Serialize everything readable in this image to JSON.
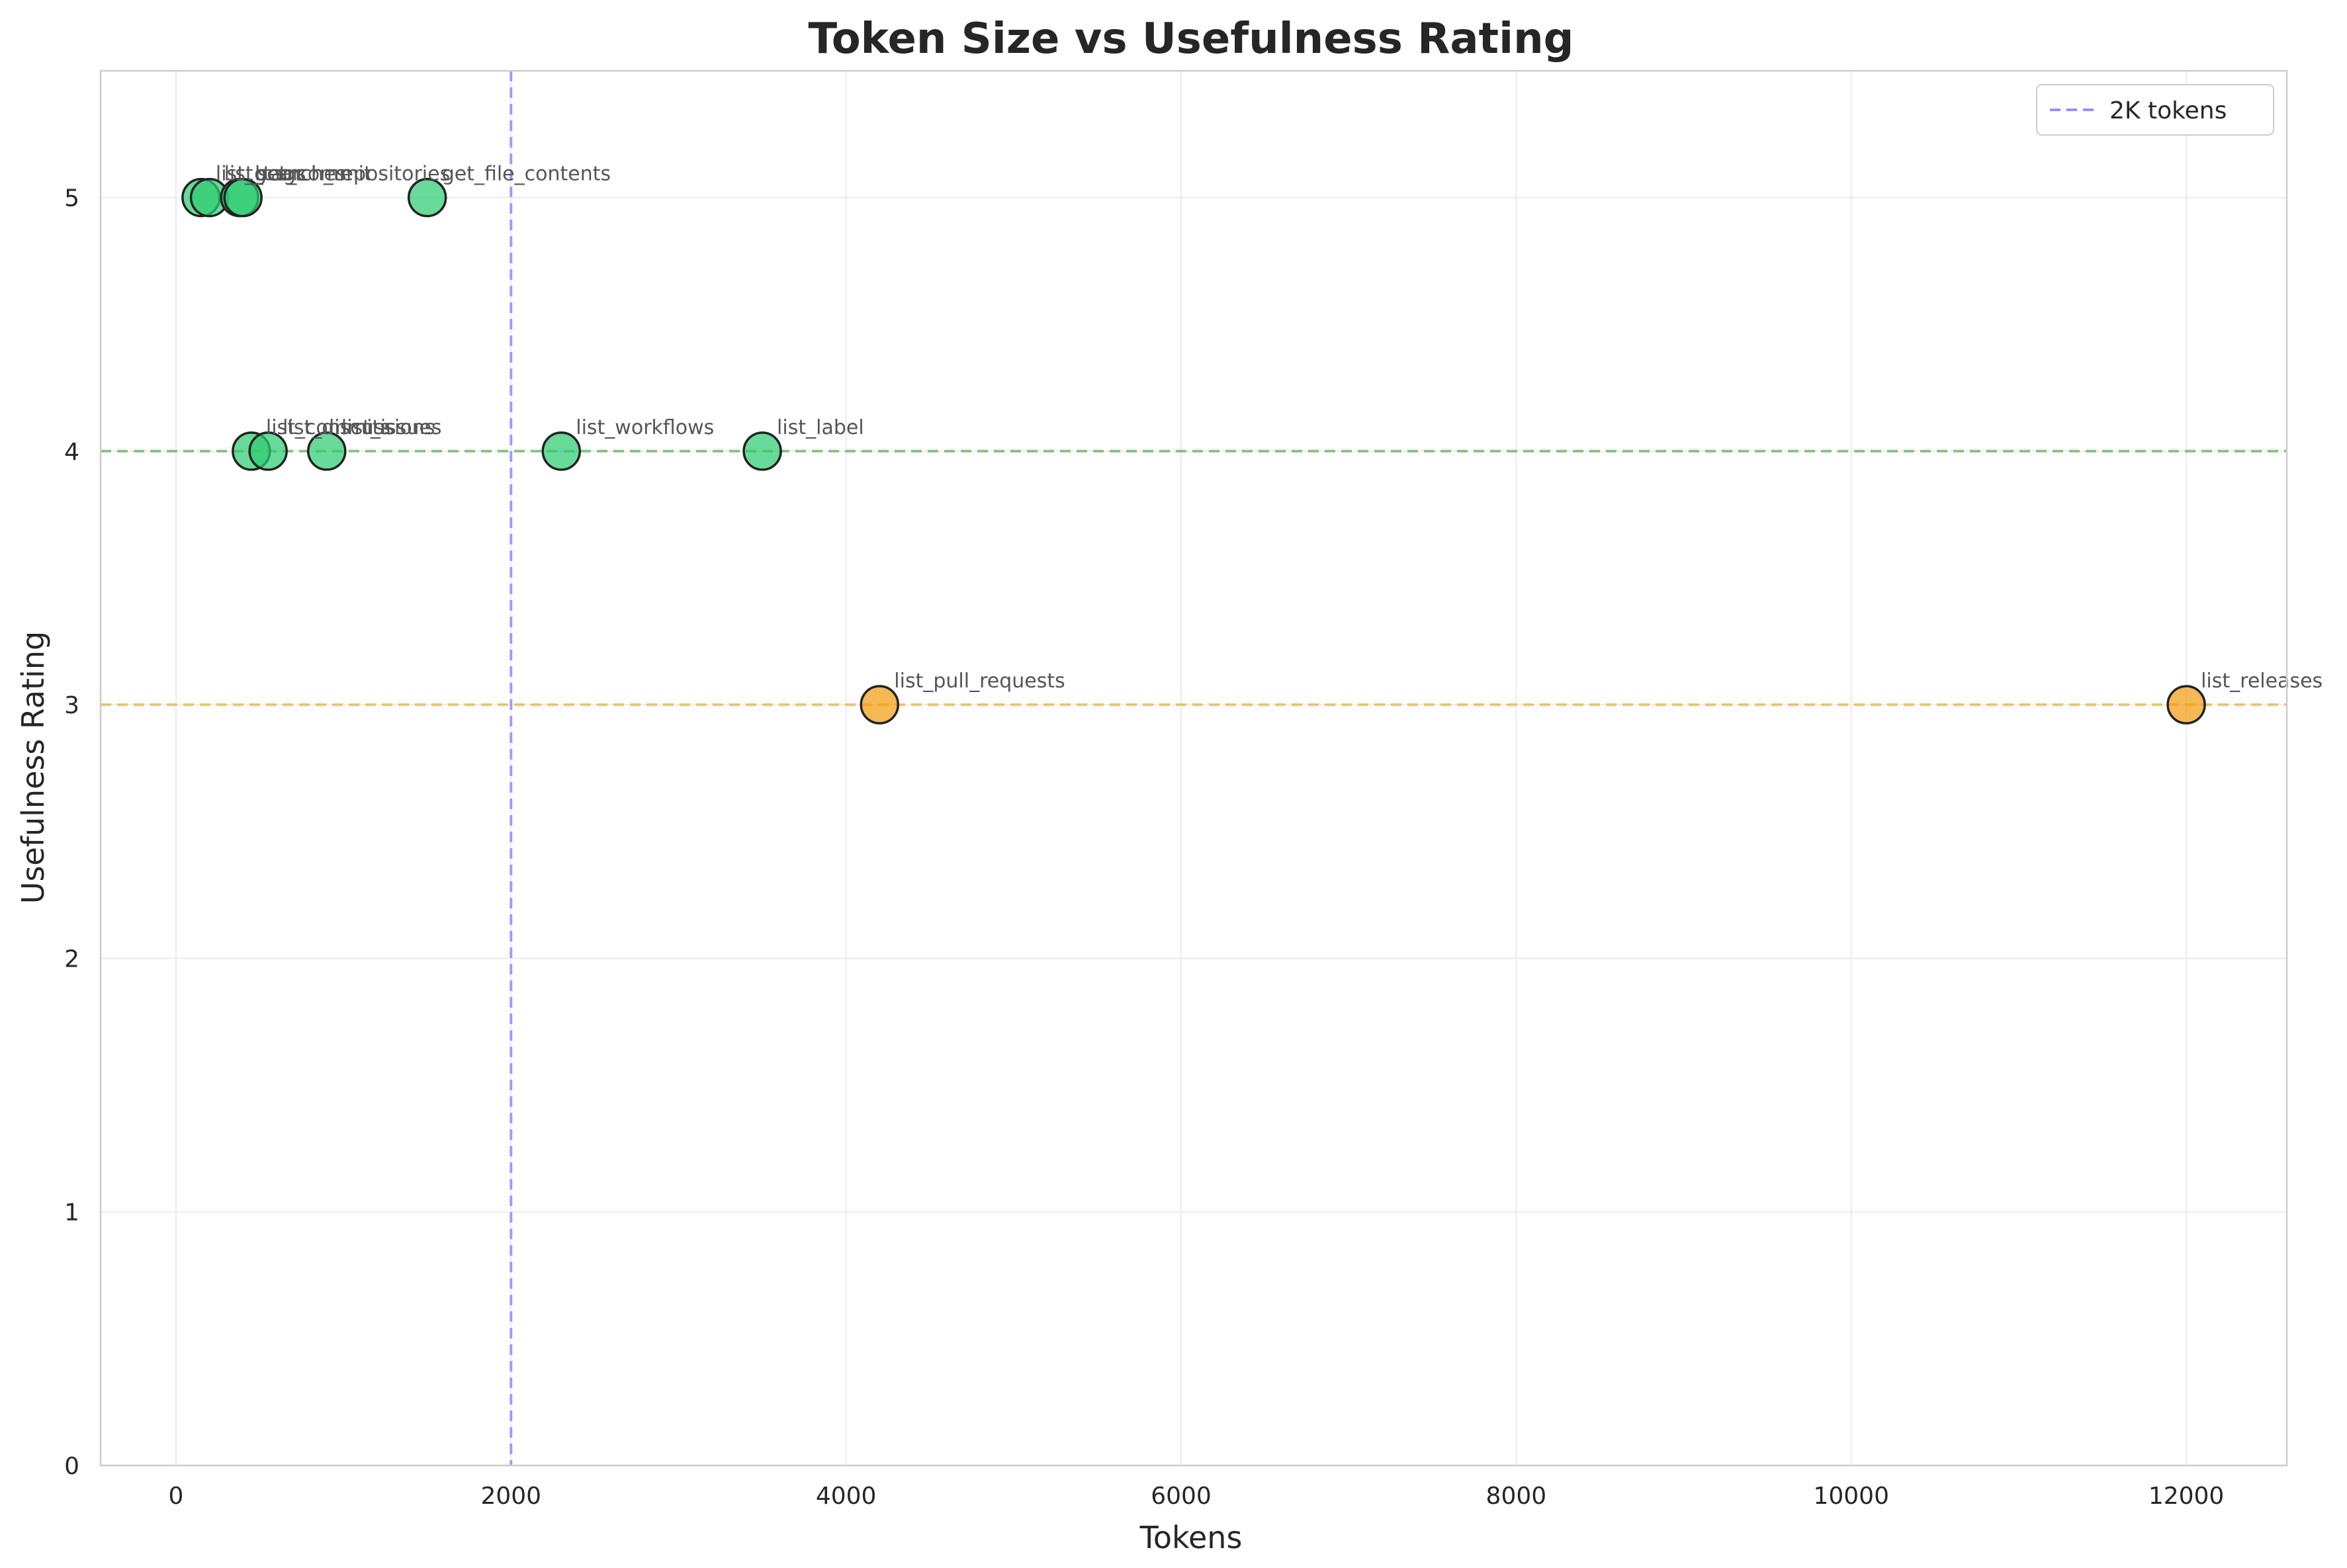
{
  "chart_data": {
    "type": "scatter",
    "title": "Token Size vs Usefulness Rating",
    "xlabel": "Tokens",
    "ylabel": "Usefulness Rating",
    "xlim": [
      -450,
      12600
    ],
    "ylim": [
      0,
      5.5
    ],
    "xticks": [
      0,
      2000,
      4000,
      6000,
      8000,
      10000,
      12000
    ],
    "yticks": [
      0,
      1,
      2,
      3,
      4,
      5
    ],
    "grid": true,
    "legend": {
      "placement": "top-right",
      "entries": [
        {
          "label": "2K tokens",
          "color": "#8080ff",
          "style": "dashed"
        }
      ]
    },
    "reference_lines": [
      {
        "axis": "x",
        "value": 2000,
        "color": "#8080ff",
        "style": "dashed"
      },
      {
        "axis": "y",
        "value": 4,
        "color": "#5cb85c",
        "style": "dashed"
      },
      {
        "axis": "y",
        "value": 3,
        "color": "#f5b041",
        "style": "dashed"
      }
    ],
    "colors": {
      "high": "#2ecc71",
      "mid": "#f39c12"
    },
    "points": [
      {
        "label": "list_branches",
        "x": 150,
        "y": 5,
        "color": "#2ecc71"
      },
      {
        "label": "list_tags",
        "x": 200,
        "y": 5,
        "color": "#2ecc71"
      },
      {
        "label": "get_commit",
        "x": 380,
        "y": 5,
        "color": "#2ecc71"
      },
      {
        "label": "search_repositories",
        "x": 400,
        "y": 5,
        "color": "#2ecc71"
      },
      {
        "label": "get_file_contents",
        "x": 1500,
        "y": 5,
        "color": "#2ecc71"
      },
      {
        "label": "list_commits",
        "x": 450,
        "y": 4,
        "color": "#2ecc71"
      },
      {
        "label": "list_discussions",
        "x": 550,
        "y": 4,
        "color": "#2ecc71"
      },
      {
        "label": "list_issues",
        "x": 900,
        "y": 4,
        "color": "#2ecc71"
      },
      {
        "label": "list_workflows",
        "x": 2300,
        "y": 4,
        "color": "#2ecc71"
      },
      {
        "label": "list_label",
        "x": 3500,
        "y": 4,
        "color": "#2ecc71"
      },
      {
        "label": "list_pull_requests",
        "x": 4200,
        "y": 3,
        "color": "#f39c12"
      },
      {
        "label": "list_releases",
        "x": 12000,
        "y": 3,
        "color": "#f39c12"
      }
    ]
  }
}
